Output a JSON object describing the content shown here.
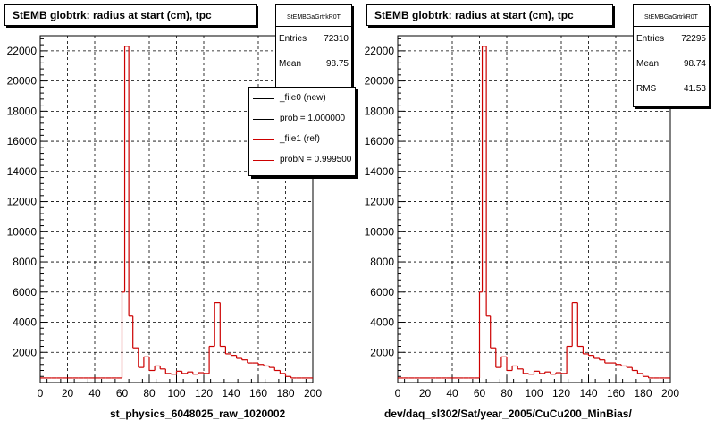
{
  "canvas_footer": "",
  "chart_data": [
    {
      "type": "histogram",
      "title": "StEMB globtrk: radius at start (cm), tpc",
      "xlabel": "st_physics_6048025_raw_1020002",
      "ylabel": "",
      "xlim": [
        0,
        200
      ],
      "ylim": [
        0,
        23000
      ],
      "x_ticks": [
        "0",
        "20",
        "40",
        "60",
        "80",
        "100",
        "120",
        "140",
        "160",
        "180",
        "200"
      ],
      "y_ticks": [
        "2000",
        "4000",
        "6000",
        "8000",
        "10000",
        "12000",
        "14000",
        "16000",
        "18000",
        "20000",
        "22000"
      ],
      "grid": true,
      "bin_width": 4,
      "stats": {
        "name": "StEMBGaGrtrkR0T",
        "entries_label": "Entries",
        "entries": "72310",
        "mean_label": "Mean",
        "mean": "98.75"
      },
      "legend": {
        "placement": "top-right",
        "entries": [
          {
            "label": "_file0 (new)",
            "color": "#000000"
          },
          {
            "label": "prob = 1.000000",
            "color": "#000000"
          },
          {
            "label": "_file1 (ref)",
            "color": "#cc0000"
          },
          {
            "label": "probN = 0.999500",
            "color": "#cc0000"
          }
        ]
      },
      "series": [
        {
          "name": "_file1 (ref)",
          "color": "#cc0000",
          "bins": [
            {
              "x": 0,
              "y": 300
            },
            {
              "x": 4,
              "y": 300
            },
            {
              "x": 8,
              "y": 300
            },
            {
              "x": 12,
              "y": 300
            },
            {
              "x": 16,
              "y": 300
            },
            {
              "x": 20,
              "y": 300
            },
            {
              "x": 24,
              "y": 300
            },
            {
              "x": 28,
              "y": 300
            },
            {
              "x": 32,
              "y": 300
            },
            {
              "x": 36,
              "y": 300
            },
            {
              "x": 40,
              "y": 300
            },
            {
              "x": 44,
              "y": 300
            },
            {
              "x": 48,
              "y": 300
            },
            {
              "x": 52,
              "y": 300
            },
            {
              "x": 56,
              "y": 300
            },
            {
              "x": 60,
              "y": 6000
            },
            {
              "x": 62,
              "y": 22300
            },
            {
              "x": 65,
              "y": 4400
            },
            {
              "x": 68,
              "y": 2300
            },
            {
              "x": 72,
              "y": 1000
            },
            {
              "x": 76,
              "y": 1700
            },
            {
              "x": 80,
              "y": 800
            },
            {
              "x": 84,
              "y": 1100
            },
            {
              "x": 88,
              "y": 900
            },
            {
              "x": 92,
              "y": 600
            },
            {
              "x": 96,
              "y": 550
            },
            {
              "x": 100,
              "y": 750
            },
            {
              "x": 104,
              "y": 600
            },
            {
              "x": 108,
              "y": 700
            },
            {
              "x": 112,
              "y": 550
            },
            {
              "x": 116,
              "y": 650
            },
            {
              "x": 120,
              "y": 600
            },
            {
              "x": 124,
              "y": 2400
            },
            {
              "x": 128,
              "y": 5300
            },
            {
              "x": 132,
              "y": 2400
            },
            {
              "x": 136,
              "y": 1900
            },
            {
              "x": 140,
              "y": 1800
            },
            {
              "x": 144,
              "y": 1600
            },
            {
              "x": 148,
              "y": 1500
            },
            {
              "x": 152,
              "y": 1300
            },
            {
              "x": 156,
              "y": 1300
            },
            {
              "x": 160,
              "y": 1200
            },
            {
              "x": 164,
              "y": 1100
            },
            {
              "x": 168,
              "y": 1000
            },
            {
              "x": 172,
              "y": 800
            },
            {
              "x": 176,
              "y": 600
            },
            {
              "x": 180,
              "y": 400
            },
            {
              "x": 184,
              "y": 300
            },
            {
              "x": 188,
              "y": 300
            },
            {
              "x": 192,
              "y": 300
            },
            {
              "x": 196,
              "y": 300
            }
          ]
        }
      ]
    },
    {
      "type": "histogram",
      "title": "StEMB globtrk: radius at start (cm), tpc",
      "xlabel": "dev/daq_sl302/Sat/year_2005/CuCu200_MinBias/",
      "ylabel": "",
      "xlim": [
        0,
        200
      ],
      "ylim": [
        0,
        23000
      ],
      "x_ticks": [
        "0",
        "20",
        "40",
        "60",
        "80",
        "100",
        "120",
        "140",
        "160",
        "180",
        "200"
      ],
      "y_ticks": [
        "2000",
        "4000",
        "6000",
        "8000",
        "10000",
        "12000",
        "14000",
        "16000",
        "18000",
        "20000",
        "22000"
      ],
      "grid": true,
      "bin_width": 4,
      "stats": {
        "name": "StEMBGaGrtrkR0T",
        "entries_label": "Entries",
        "entries": "72295",
        "mean_label": "Mean",
        "mean": "98.74",
        "rms_label": "RMS",
        "rms": "41.53"
      },
      "series": [
        {
          "name": "",
          "color": "#cc0000",
          "bins": [
            {
              "x": 0,
              "y": 300
            },
            {
              "x": 4,
              "y": 300
            },
            {
              "x": 8,
              "y": 300
            },
            {
              "x": 12,
              "y": 300
            },
            {
              "x": 16,
              "y": 300
            },
            {
              "x": 20,
              "y": 300
            },
            {
              "x": 24,
              "y": 300
            },
            {
              "x": 28,
              "y": 300
            },
            {
              "x": 32,
              "y": 300
            },
            {
              "x": 36,
              "y": 300
            },
            {
              "x": 40,
              "y": 300
            },
            {
              "x": 44,
              "y": 300
            },
            {
              "x": 48,
              "y": 300
            },
            {
              "x": 52,
              "y": 300
            },
            {
              "x": 56,
              "y": 300
            },
            {
              "x": 60,
              "y": 6000
            },
            {
              "x": 62,
              "y": 22300
            },
            {
              "x": 65,
              "y": 4400
            },
            {
              "x": 68,
              "y": 2300
            },
            {
              "x": 72,
              "y": 1000
            },
            {
              "x": 76,
              "y": 1700
            },
            {
              "x": 80,
              "y": 800
            },
            {
              "x": 84,
              "y": 1100
            },
            {
              "x": 88,
              "y": 900
            },
            {
              "x": 92,
              "y": 600
            },
            {
              "x": 96,
              "y": 550
            },
            {
              "x": 100,
              "y": 750
            },
            {
              "x": 104,
              "y": 600
            },
            {
              "x": 108,
              "y": 700
            },
            {
              "x": 112,
              "y": 550
            },
            {
              "x": 116,
              "y": 650
            },
            {
              "x": 120,
              "y": 600
            },
            {
              "x": 124,
              "y": 2400
            },
            {
              "x": 128,
              "y": 5300
            },
            {
              "x": 132,
              "y": 2400
            },
            {
              "x": 136,
              "y": 1900
            },
            {
              "x": 140,
              "y": 1800
            },
            {
              "x": 144,
              "y": 1600
            },
            {
              "x": 148,
              "y": 1500
            },
            {
              "x": 152,
              "y": 1300
            },
            {
              "x": 156,
              "y": 1300
            },
            {
              "x": 160,
              "y": 1200
            },
            {
              "x": 164,
              "y": 1100
            },
            {
              "x": 168,
              "y": 1000
            },
            {
              "x": 172,
              "y": 800
            },
            {
              "x": 176,
              "y": 600
            },
            {
              "x": 180,
              "y": 400
            },
            {
              "x": 184,
              "y": 300
            },
            {
              "x": 188,
              "y": 300
            },
            {
              "x": 192,
              "y": 300
            },
            {
              "x": 196,
              "y": 300
            }
          ]
        }
      ]
    }
  ]
}
